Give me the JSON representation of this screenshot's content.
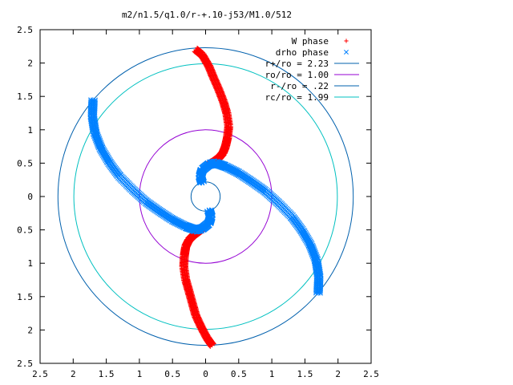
{
  "chart_data": {
    "type": "scatter",
    "title": "m2/n1.5/q1.0/r-+.10-j53/M1.0/512",
    "xlabel": "",
    "ylabel": "",
    "xlim": [
      -2.5,
      2.5
    ],
    "ylim": [
      -2.5,
      2.5
    ],
    "x_ticks": [
      -2.5,
      -2,
      -1.5,
      -1,
      -0.5,
      0,
      0.5,
      1,
      1.5,
      2,
      2.5
    ],
    "y_ticks": [
      -2.5,
      -2,
      -1.5,
      -1,
      -0.5,
      0,
      0.5,
      1,
      1.5,
      2,
      2.5
    ],
    "x_tick_labels": [
      "2.5",
      "2",
      "1.5",
      "1",
      "0.5",
      "0",
      "0.5",
      "1",
      "1.5",
      "2",
      "2.5"
    ],
    "y_tick_labels": [
      "2.5",
      "2",
      "1.5",
      "1",
      "0.5",
      "0",
      "0.5",
      "1",
      "1.5",
      "2",
      "2.5"
    ],
    "grid": false,
    "legend_position": "top-right",
    "series": [
      {
        "name": "W phase",
        "marker": "+",
        "color": "#ff0000",
        "arms": [
          {
            "x": [
              -0.15,
              -0.05,
              0.05,
              0.12,
              0.2,
              0.27,
              0.32,
              0.35,
              0.33,
              0.3,
              0.26,
              0.2,
              0.12,
              0.05
            ],
            "y": [
              2.2,
              2.12,
              1.95,
              1.78,
              1.6,
              1.42,
              1.25,
              1.05,
              0.88,
              0.75,
              0.65,
              0.58,
              0.52,
              0.48
            ]
          },
          {
            "x": [
              0.1,
              0.02,
              -0.07,
              -0.15,
              -0.2,
              -0.25,
              -0.3,
              -0.33,
              -0.32,
              -0.3,
              -0.25,
              -0.18,
              -0.1,
              -0.05
            ],
            "y": [
              -2.23,
              -2.12,
              -1.95,
              -1.78,
              -1.6,
              -1.42,
              -1.25,
              -1.05,
              -0.88,
              -0.75,
              -0.65,
              -0.58,
              -0.52,
              -0.48
            ]
          }
        ]
      },
      {
        "name": "drho phase",
        "marker": "x",
        "color": "#0080ff",
        "arms": [
          {
            "x": [
              1.7,
              1.71,
              1.67,
              1.58,
              1.45,
              1.3,
              1.1,
              0.9,
              0.7,
              0.5,
              0.3,
              0.15,
              0.05,
              -0.05,
              -0.08,
              -0.05
            ],
            "y": [
              -1.45,
              -1.2,
              -0.95,
              -0.72,
              -0.5,
              -0.3,
              -0.1,
              0.08,
              0.22,
              0.35,
              0.45,
              0.5,
              0.48,
              0.4,
              0.3,
              0.2
            ]
          },
          {
            "x": [
              -1.7,
              -1.71,
              -1.67,
              -1.58,
              -1.45,
              -1.3,
              -1.1,
              -0.9,
              -0.7,
              -0.5,
              -0.3,
              -0.15,
              -0.05,
              0.05,
              0.08,
              0.05
            ],
            "y": [
              1.45,
              1.2,
              0.95,
              0.72,
              0.5,
              0.3,
              0.1,
              -0.08,
              -0.22,
              -0.35,
              -0.45,
              -0.5,
              -0.48,
              -0.4,
              -0.3,
              -0.2
            ]
          }
        ]
      },
      {
        "name": "r+/ro = 2.23",
        "kind": "circle",
        "radius": 2.23,
        "color": "#0060ad"
      },
      {
        "name": "ro/ro = 1.00",
        "kind": "circle",
        "radius": 1.0,
        "color": "#9400d3"
      },
      {
        "name": "r-/ro = .22",
        "kind": "circle",
        "radius": 0.22,
        "color": "#0060ad"
      },
      {
        "name": "rc/ro = 1.99",
        "kind": "circle",
        "radius": 1.99,
        "color": "#00c0c0"
      }
    ]
  }
}
